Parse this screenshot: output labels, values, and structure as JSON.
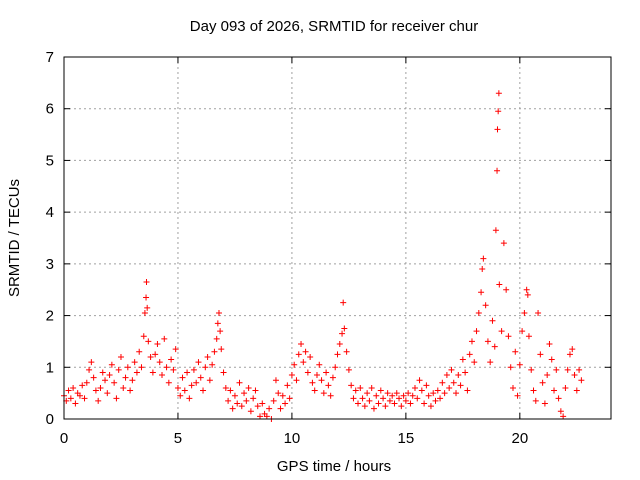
{
  "chart_data": {
    "type": "scatter",
    "title": "Day 093 of 2026, SRMTID for receiver chur",
    "xlabel": "GPS time / hours",
    "ylabel": "SRMTID / TECUs",
    "xlim": [
      0,
      24
    ],
    "ylim": [
      0,
      7
    ],
    "xticks": [
      0,
      5,
      10,
      15,
      20
    ],
    "yticks": [
      0,
      1,
      2,
      3,
      4,
      5,
      6,
      7
    ],
    "grid": true,
    "marker": "+",
    "color": "#ff0000",
    "series": [
      {
        "name": "SRMTID",
        "points": [
          [
            0.0,
            0.45
          ],
          [
            0.1,
            0.35
          ],
          [
            0.2,
            0.55
          ],
          [
            0.3,
            0.4
          ],
          [
            0.4,
            0.6
          ],
          [
            0.5,
            0.3
          ],
          [
            0.6,
            0.5
          ],
          [
            0.7,
            0.45
          ],
          [
            0.8,
            0.65
          ],
          [
            0.9,
            0.4
          ],
          [
            1.0,
            0.7
          ],
          [
            1.1,
            0.95
          ],
          [
            1.2,
            1.1
          ],
          [
            1.3,
            0.8
          ],
          [
            1.4,
            0.55
          ],
          [
            1.5,
            0.35
          ],
          [
            1.6,
            0.6
          ],
          [
            1.7,
            0.9
          ],
          [
            1.8,
            0.75
          ],
          [
            1.9,
            0.5
          ],
          [
            2.0,
            0.85
          ],
          [
            2.1,
            1.05
          ],
          [
            2.2,
            0.7
          ],
          [
            2.3,
            0.4
          ],
          [
            2.4,
            0.95
          ],
          [
            2.5,
            1.2
          ],
          [
            2.6,
            0.6
          ],
          [
            2.7,
            0.8
          ],
          [
            2.8,
            1.0
          ],
          [
            2.9,
            0.55
          ],
          [
            3.0,
            0.75
          ],
          [
            3.1,
            1.1
          ],
          [
            3.2,
            0.9
          ],
          [
            3.3,
            1.3
          ],
          [
            3.4,
            1.0
          ],
          [
            3.5,
            1.6
          ],
          [
            3.55,
            2.05
          ],
          [
            3.6,
            2.35
          ],
          [
            3.62,
            2.65
          ],
          [
            3.65,
            2.15
          ],
          [
            3.7,
            1.5
          ],
          [
            3.8,
            1.2
          ],
          [
            3.9,
            0.9
          ],
          [
            4.0,
            1.25
          ],
          [
            4.1,
            1.45
          ],
          [
            4.2,
            1.1
          ],
          [
            4.3,
            0.85
          ],
          [
            4.4,
            1.55
          ],
          [
            4.5,
            1.0
          ],
          [
            4.6,
            0.7
          ],
          [
            4.7,
            1.15
          ],
          [
            4.8,
            0.95
          ],
          [
            4.9,
            1.35
          ],
          [
            5.0,
            0.6
          ],
          [
            5.1,
            0.45
          ],
          [
            5.2,
            0.8
          ],
          [
            5.3,
            0.55
          ],
          [
            5.4,
            0.9
          ],
          [
            5.5,
            0.4
          ],
          [
            5.6,
            0.65
          ],
          [
            5.7,
            0.95
          ],
          [
            5.8,
            0.7
          ],
          [
            5.9,
            1.1
          ],
          [
            6.0,
            0.8
          ],
          [
            6.1,
            0.55
          ],
          [
            6.2,
            1.0
          ],
          [
            6.3,
            1.2
          ],
          [
            6.4,
            0.75
          ],
          [
            6.5,
            1.05
          ],
          [
            6.6,
            1.3
          ],
          [
            6.7,
            1.55
          ],
          [
            6.75,
            1.85
          ],
          [
            6.8,
            2.05
          ],
          [
            6.85,
            1.7
          ],
          [
            6.9,
            1.35
          ],
          [
            7.0,
            0.9
          ],
          [
            7.1,
            0.6
          ],
          [
            7.2,
            0.35
          ],
          [
            7.3,
            0.55
          ],
          [
            7.4,
            0.2
          ],
          [
            7.5,
            0.45
          ],
          [
            7.6,
            0.3
          ],
          [
            7.7,
            0.7
          ],
          [
            7.8,
            0.25
          ],
          [
            7.9,
            0.5
          ],
          [
            8.0,
            0.35
          ],
          [
            8.1,
            0.6
          ],
          [
            8.2,
            0.15
          ],
          [
            8.3,
            0.4
          ],
          [
            8.4,
            0.55
          ],
          [
            8.5,
            0.25
          ],
          [
            8.6,
            0.05
          ],
          [
            8.7,
            0.3
          ],
          [
            8.8,
            0.1
          ],
          [
            8.9,
            0.05
          ],
          [
            9.0,
            0.2
          ],
          [
            9.1,
            0.0
          ],
          [
            9.2,
            0.35
          ],
          [
            9.3,
            0.75
          ],
          [
            9.4,
            0.5
          ],
          [
            9.5,
            0.2
          ],
          [
            9.6,
            0.45
          ],
          [
            9.7,
            0.3
          ],
          [
            9.8,
            0.65
          ],
          [
            9.9,
            0.4
          ],
          [
            10.0,
            0.85
          ],
          [
            10.1,
            1.05
          ],
          [
            10.2,
            0.75
          ],
          [
            10.3,
            1.25
          ],
          [
            10.4,
            1.45
          ],
          [
            10.5,
            1.1
          ],
          [
            10.6,
            1.3
          ],
          [
            10.7,
            0.9
          ],
          [
            10.8,
            1.2
          ],
          [
            10.9,
            0.7
          ],
          [
            11.0,
            0.55
          ],
          [
            11.1,
            0.85
          ],
          [
            11.2,
            1.05
          ],
          [
            11.3,
            0.75
          ],
          [
            11.4,
            0.5
          ],
          [
            11.5,
            0.9
          ],
          [
            11.6,
            0.65
          ],
          [
            11.7,
            0.45
          ],
          [
            11.8,
            0.8
          ],
          [
            11.9,
            1.0
          ],
          [
            12.0,
            1.25
          ],
          [
            12.1,
            1.45
          ],
          [
            12.2,
            1.65
          ],
          [
            12.25,
            2.25
          ],
          [
            12.3,
            1.75
          ],
          [
            12.4,
            1.3
          ],
          [
            12.5,
            0.95
          ],
          [
            12.6,
            0.65
          ],
          [
            12.7,
            0.4
          ],
          [
            12.8,
            0.55
          ],
          [
            12.9,
            0.3
          ],
          [
            13.0,
            0.6
          ],
          [
            13.1,
            0.4
          ],
          [
            13.2,
            0.25
          ],
          [
            13.3,
            0.5
          ],
          [
            13.4,
            0.35
          ],
          [
            13.5,
            0.6
          ],
          [
            13.6,
            0.2
          ],
          [
            13.7,
            0.45
          ],
          [
            13.8,
            0.3
          ],
          [
            13.9,
            0.55
          ],
          [
            14.0,
            0.4
          ],
          [
            14.1,
            0.25
          ],
          [
            14.2,
            0.5
          ],
          [
            14.3,
            0.35
          ],
          [
            14.4,
            0.45
          ],
          [
            14.5,
            0.3
          ],
          [
            14.6,
            0.5
          ],
          [
            14.7,
            0.4
          ],
          [
            14.8,
            0.25
          ],
          [
            14.9,
            0.45
          ],
          [
            15.0,
            0.35
          ],
          [
            15.1,
            0.5
          ],
          [
            15.2,
            0.3
          ],
          [
            15.3,
            0.45
          ],
          [
            15.4,
            0.6
          ],
          [
            15.5,
            0.4
          ],
          [
            15.6,
            0.75
          ],
          [
            15.7,
            0.55
          ],
          [
            15.8,
            0.3
          ],
          [
            15.9,
            0.65
          ],
          [
            16.0,
            0.45
          ],
          [
            16.1,
            0.25
          ],
          [
            16.2,
            0.5
          ],
          [
            16.3,
            0.35
          ],
          [
            16.4,
            0.55
          ],
          [
            16.5,
            0.4
          ],
          [
            16.6,
            0.7
          ],
          [
            16.7,
            0.5
          ],
          [
            16.8,
            0.85
          ],
          [
            16.9,
            0.6
          ],
          [
            17.0,
            0.95
          ],
          [
            17.1,
            0.7
          ],
          [
            17.2,
            0.5
          ],
          [
            17.3,
            0.85
          ],
          [
            17.4,
            0.65
          ],
          [
            17.5,
            1.15
          ],
          [
            17.6,
            0.9
          ],
          [
            17.7,
            0.55
          ],
          [
            17.8,
            1.25
          ],
          [
            17.9,
            1.5
          ],
          [
            18.0,
            1.1
          ],
          [
            18.1,
            1.7
          ],
          [
            18.2,
            2.05
          ],
          [
            18.3,
            2.45
          ],
          [
            18.35,
            2.9
          ],
          [
            18.4,
            3.1
          ],
          [
            18.5,
            2.2
          ],
          [
            18.6,
            1.5
          ],
          [
            18.7,
            1.1
          ],
          [
            18.8,
            1.9
          ],
          [
            18.9,
            1.4
          ],
          [
            18.95,
            3.65
          ],
          [
            19.0,
            4.8
          ],
          [
            19.02,
            5.6
          ],
          [
            19.05,
            5.95
          ],
          [
            19.08,
            6.3
          ],
          [
            19.1,
            2.6
          ],
          [
            19.2,
            1.7
          ],
          [
            19.3,
            3.4
          ],
          [
            19.4,
            2.5
          ],
          [
            19.5,
            1.6
          ],
          [
            19.6,
            1.0
          ],
          [
            19.7,
            0.6
          ],
          [
            19.8,
            1.3
          ],
          [
            19.9,
            0.45
          ],
          [
            20.0,
            1.05
          ],
          [
            20.1,
            1.7
          ],
          [
            20.2,
            2.05
          ],
          [
            20.3,
            2.5
          ],
          [
            20.35,
            2.4
          ],
          [
            20.4,
            1.6
          ],
          [
            20.5,
            0.95
          ],
          [
            20.6,
            0.55
          ],
          [
            20.7,
            0.35
          ],
          [
            20.8,
            2.05
          ],
          [
            20.9,
            1.25
          ],
          [
            21.0,
            0.7
          ],
          [
            21.1,
            0.3
          ],
          [
            21.2,
            0.85
          ],
          [
            21.3,
            1.45
          ],
          [
            21.4,
            1.15
          ],
          [
            21.5,
            0.55
          ],
          [
            21.6,
            0.95
          ],
          [
            21.7,
            0.4
          ],
          [
            21.8,
            0.15
          ],
          [
            21.9,
            0.05
          ],
          [
            22.0,
            0.6
          ],
          [
            22.1,
            0.95
          ],
          [
            22.2,
            1.25
          ],
          [
            22.3,
            1.35
          ],
          [
            22.4,
            0.85
          ],
          [
            22.5,
            0.55
          ],
          [
            22.6,
            0.95
          ],
          [
            22.7,
            0.75
          ]
        ]
      }
    ]
  }
}
